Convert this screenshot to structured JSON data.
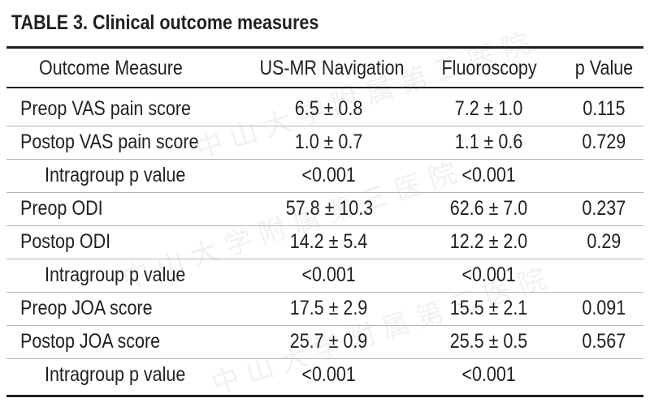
{
  "title": "TABLE 3. Clinical outcome measures",
  "watermark": "中山大学附属第三医院",
  "headers": [
    "Outcome Measure",
    "US-MR Navigation",
    "Fluoroscopy",
    "p Value"
  ],
  "rows": [
    {
      "label": "Preop VAS pain score",
      "us_mr": "6.5 ± 0.8",
      "fluoro": "7.2 ± 1.0",
      "p": "0.115",
      "indent": false
    },
    {
      "label": "Postop VAS pain score",
      "us_mr": "1.0 ± 0.7",
      "fluoro": "1.1 ± 0.6",
      "p": "0.729",
      "indent": false
    },
    {
      "label": "Intragroup p value",
      "us_mr": "<0.001",
      "fluoro": "<0.001",
      "p": "",
      "indent": true
    },
    {
      "label": "Preop ODI",
      "us_mr": "57.8 ± 10.3",
      "fluoro": "62.6 ± 7.0",
      "p": "0.237",
      "indent": false
    },
    {
      "label": "Postop ODI",
      "us_mr": "14.2 ± 5.4",
      "fluoro": "12.2 ± 2.0",
      "p": "0.29",
      "indent": false
    },
    {
      "label": "Intragroup p value",
      "us_mr": "<0.001",
      "fluoro": "<0.001",
      "p": "",
      "indent": true
    },
    {
      "label": "Preop JOA score",
      "us_mr": "17.5 ± 2.9",
      "fluoro": "15.5 ± 2.1",
      "p": "0.091",
      "indent": false
    },
    {
      "label": "Postop JOA score",
      "us_mr": "25.7 ± 0.9",
      "fluoro": "25.5 ± 0.5",
      "p": "0.567",
      "indent": false
    },
    {
      "label": "Intragroup p value",
      "us_mr": "<0.001",
      "fluoro": "<0.001",
      "p": "",
      "indent": true
    }
  ]
}
